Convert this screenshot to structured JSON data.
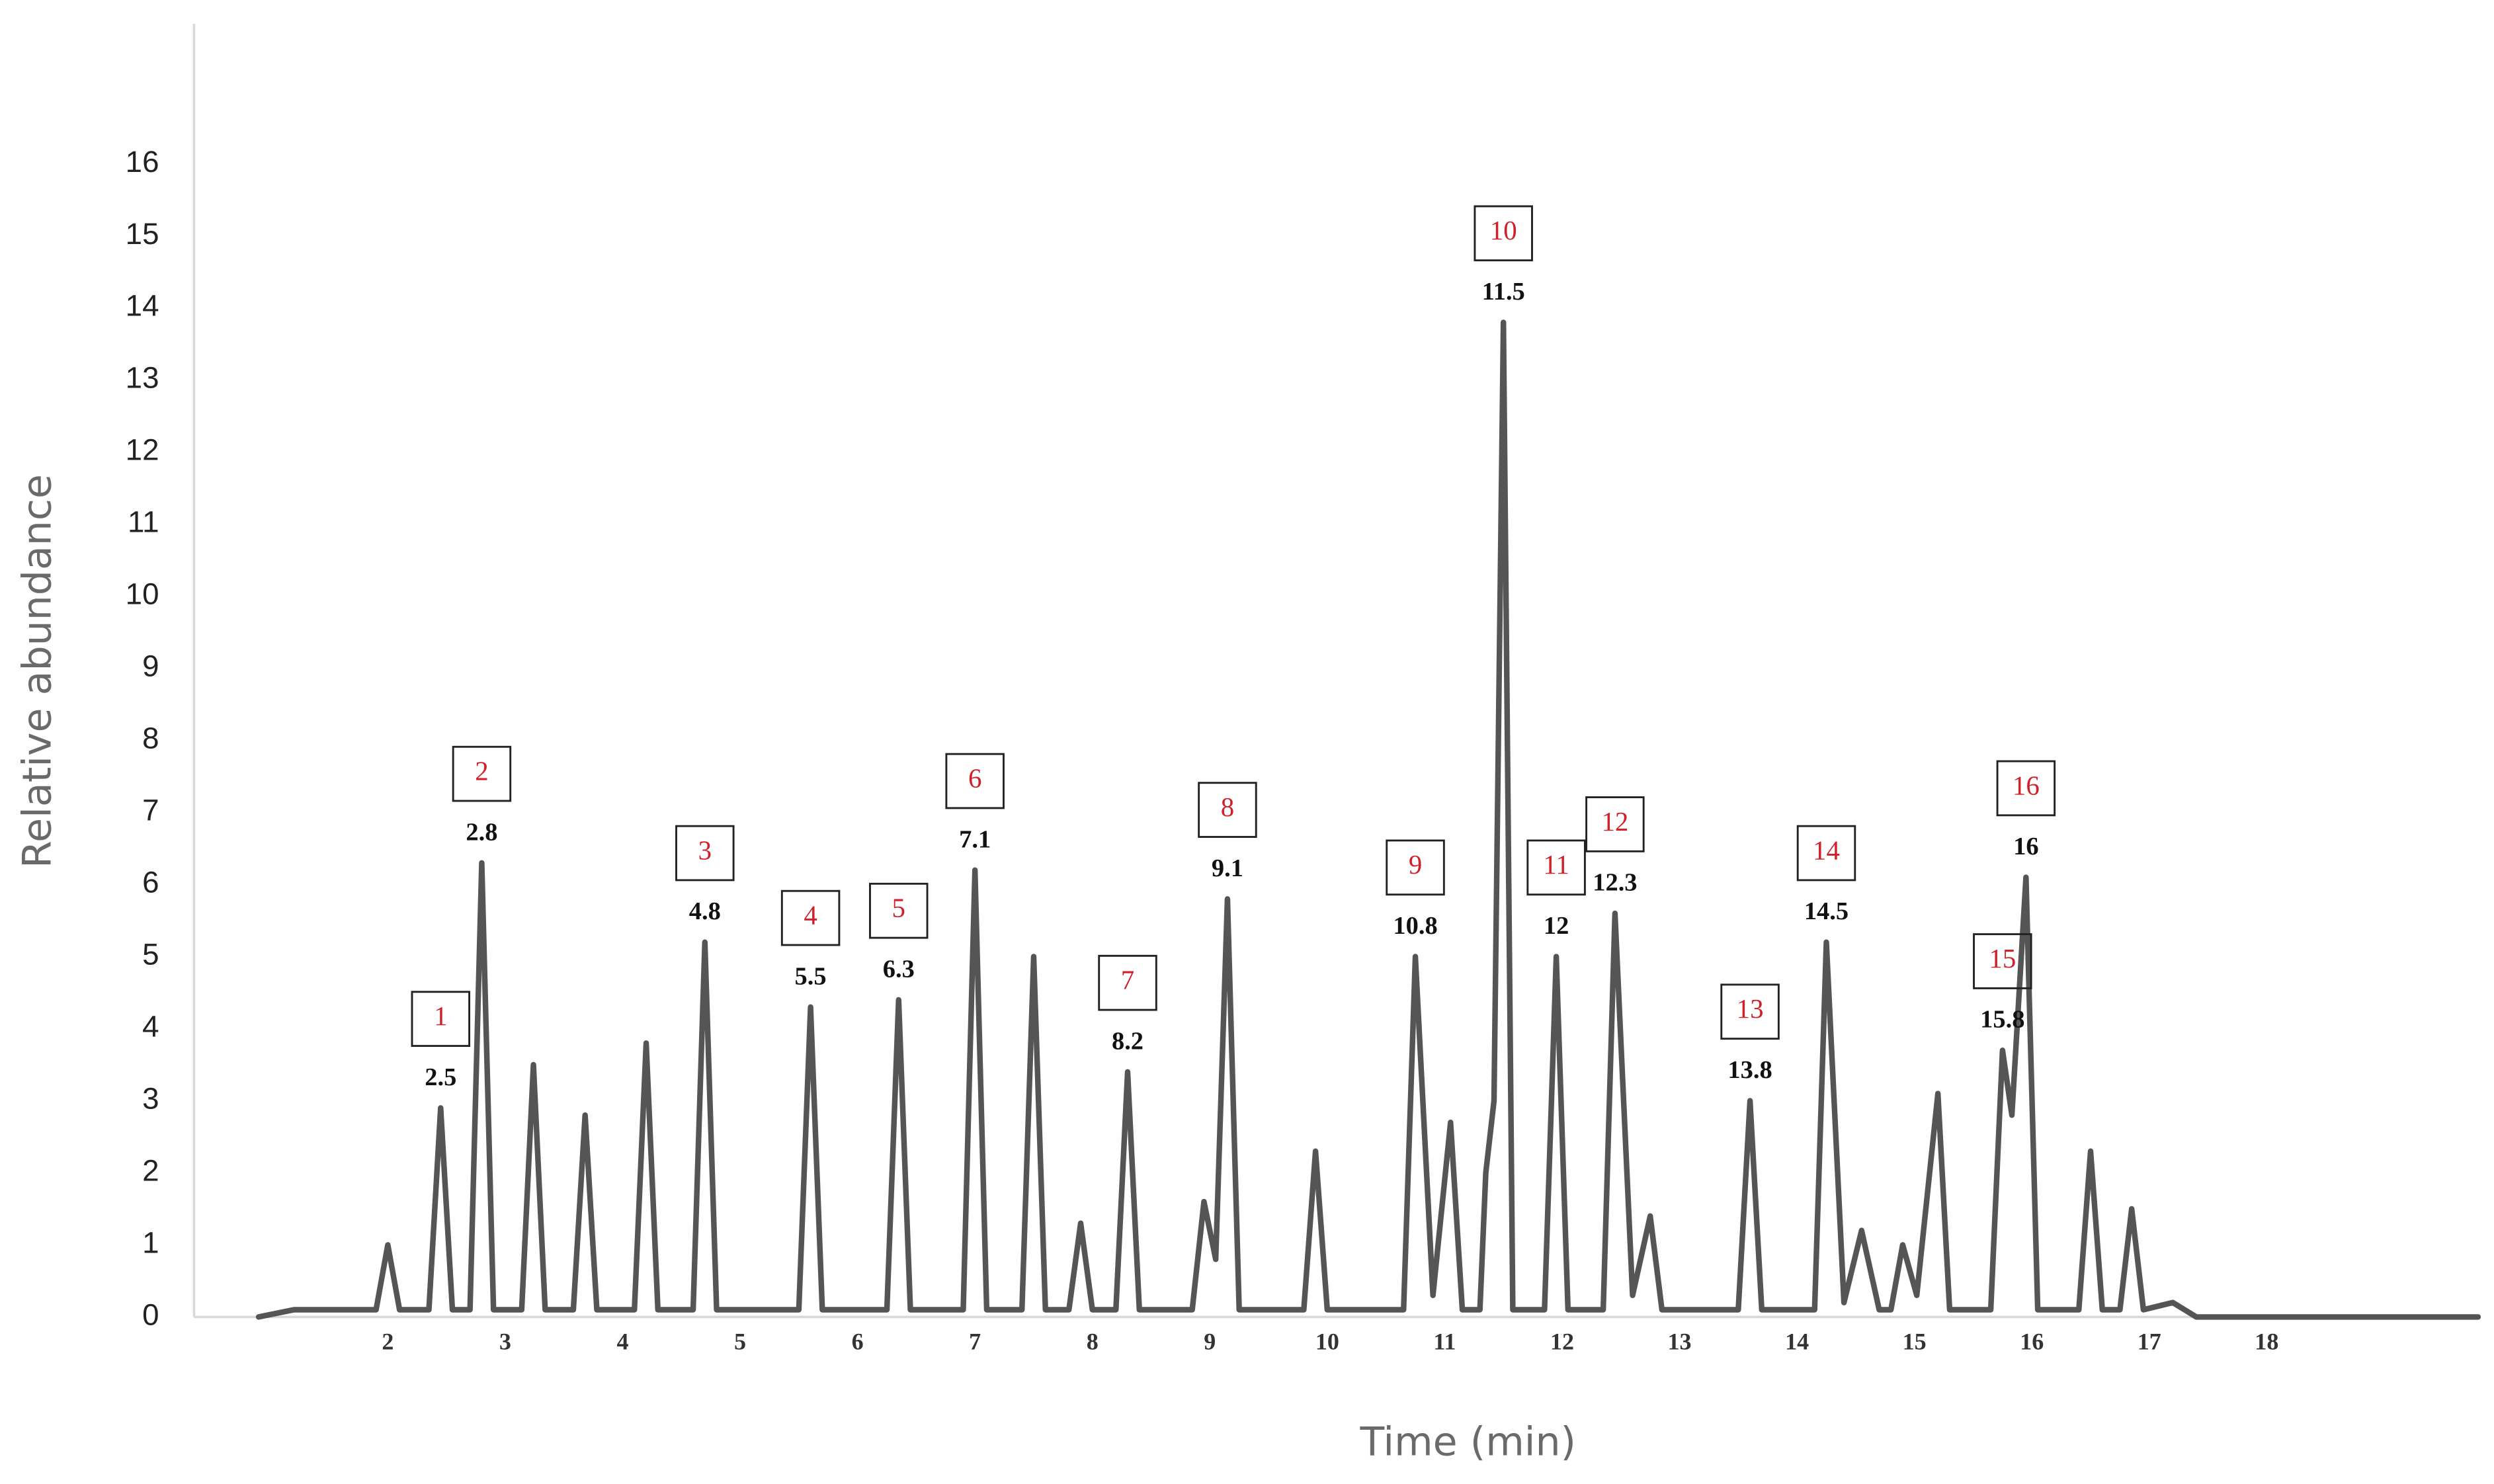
{
  "chart_data": {
    "type": "line",
    "y_label": "Relative abundance",
    "x_label": "Time (min)",
    "xlim": [
      0.35,
      19.8
    ],
    "ylim": [
      0,
      17.5
    ],
    "xticks": [
      2,
      3,
      4,
      5,
      6,
      7,
      8,
      9,
      10,
      11,
      12,
      13,
      14,
      15,
      16,
      17,
      18
    ],
    "yticks": [
      0,
      1,
      2,
      3,
      4,
      5,
      6,
      7,
      8,
      9,
      10,
      11,
      12,
      13,
      14,
      15,
      16
    ],
    "grid": false,
    "x": [
      0.9,
      1.2,
      1.9,
      2.0,
      2.1,
      2.35,
      2.45,
      2.55,
      2.7,
      2.8,
      2.9,
      3.14,
      3.24,
      3.34,
      3.58,
      3.68,
      3.78,
      4.1,
      4.2,
      4.3,
      4.6,
      4.7,
      4.8,
      5.5,
      5.6,
      5.7,
      6.25,
      6.35,
      6.45,
      6.9,
      7.0,
      7.1,
      7.4,
      7.5,
      7.6,
      7.8,
      7.9,
      8.0,
      8.2,
      8.3,
      8.4,
      8.85,
      8.95,
      9.05,
      9.15,
      9.25,
      9.8,
      9.9,
      10.0,
      10.65,
      10.75,
      10.9,
      11.05,
      11.15,
      11.3,
      11.35,
      11.42,
      11.5,
      11.58,
      11.85,
      11.95,
      12.05,
      12.35,
      12.45,
      12.6,
      12.75,
      12.85,
      13.5,
      13.6,
      13.7,
      14.15,
      14.25,
      14.4,
      14.55,
      14.7,
      14.8,
      14.9,
      15.02,
      15.2,
      15.3,
      15.65,
      15.75,
      15.83,
      15.95,
      16.05,
      16.4,
      16.5,
      16.6,
      16.75,
      16.85,
      16.95,
      17.2,
      17.4,
      19.8
    ],
    "series": [
      {
        "color": "#555555",
        "values": [
          0,
          0.1,
          0.1,
          1.0,
          0.1,
          0.1,
          2.9,
          0.1,
          0.1,
          6.3,
          0.1,
          0.1,
          3.5,
          0.1,
          0.1,
          2.8,
          0.1,
          0.1,
          3.8,
          0.1,
          0.1,
          5.2,
          0.1,
          0.1,
          4.3,
          0.1,
          0.1,
          4.4,
          0.1,
          0.1,
          6.2,
          0.1,
          0.1,
          5.0,
          0.1,
          0.1,
          1.3,
          0.1,
          0.1,
          3.4,
          0.1,
          0.1,
          1.6,
          0.8,
          5.8,
          0.1,
          0.1,
          2.3,
          0.1,
          0.1,
          5.0,
          0.3,
          2.7,
          0.1,
          0.1,
          2.0,
          3.0,
          13.8,
          0.1,
          0.1,
          5.0,
          0.1,
          0.1,
          5.6,
          0.3,
          1.4,
          0.1,
          0.1,
          3.0,
          0.1,
          0.1,
          5.2,
          0.2,
          1.2,
          0.1,
          0.1,
          1.0,
          0.3,
          3.1,
          0.1,
          0.1,
          3.7,
          2.8,
          6.1,
          0.1,
          0.1,
          2.3,
          0.1,
          0.1,
          1.5,
          0.1,
          0.2,
          0,
          0
        ]
      }
    ],
    "annotations": [
      {
        "number": "1",
        "label": 2.5
      },
      {
        "number": "2",
        "label": 2.8
      },
      {
        "number": "3",
        "label": 4.8
      },
      {
        "number": "4",
        "label": 5.5
      },
      {
        "number": "5",
        "label": 6.3
      },
      {
        "number": "6",
        "label": 7.1
      },
      {
        "number": "7",
        "label": 8.2
      },
      {
        "number": "8",
        "label": 9.1
      },
      {
        "number": "9",
        "label": 10.8
      },
      {
        "number": "10",
        "label": 11.5
      },
      {
        "number": "11",
        "label": 12
      },
      {
        "number": "12",
        "label": 12.3
      },
      {
        "number": "13",
        "label": 13.8
      },
      {
        "number": "14",
        "label": 14.5
      },
      {
        "number": "15",
        "label": 15.8
      },
      {
        "number": "16",
        "label": 16
      }
    ]
  }
}
